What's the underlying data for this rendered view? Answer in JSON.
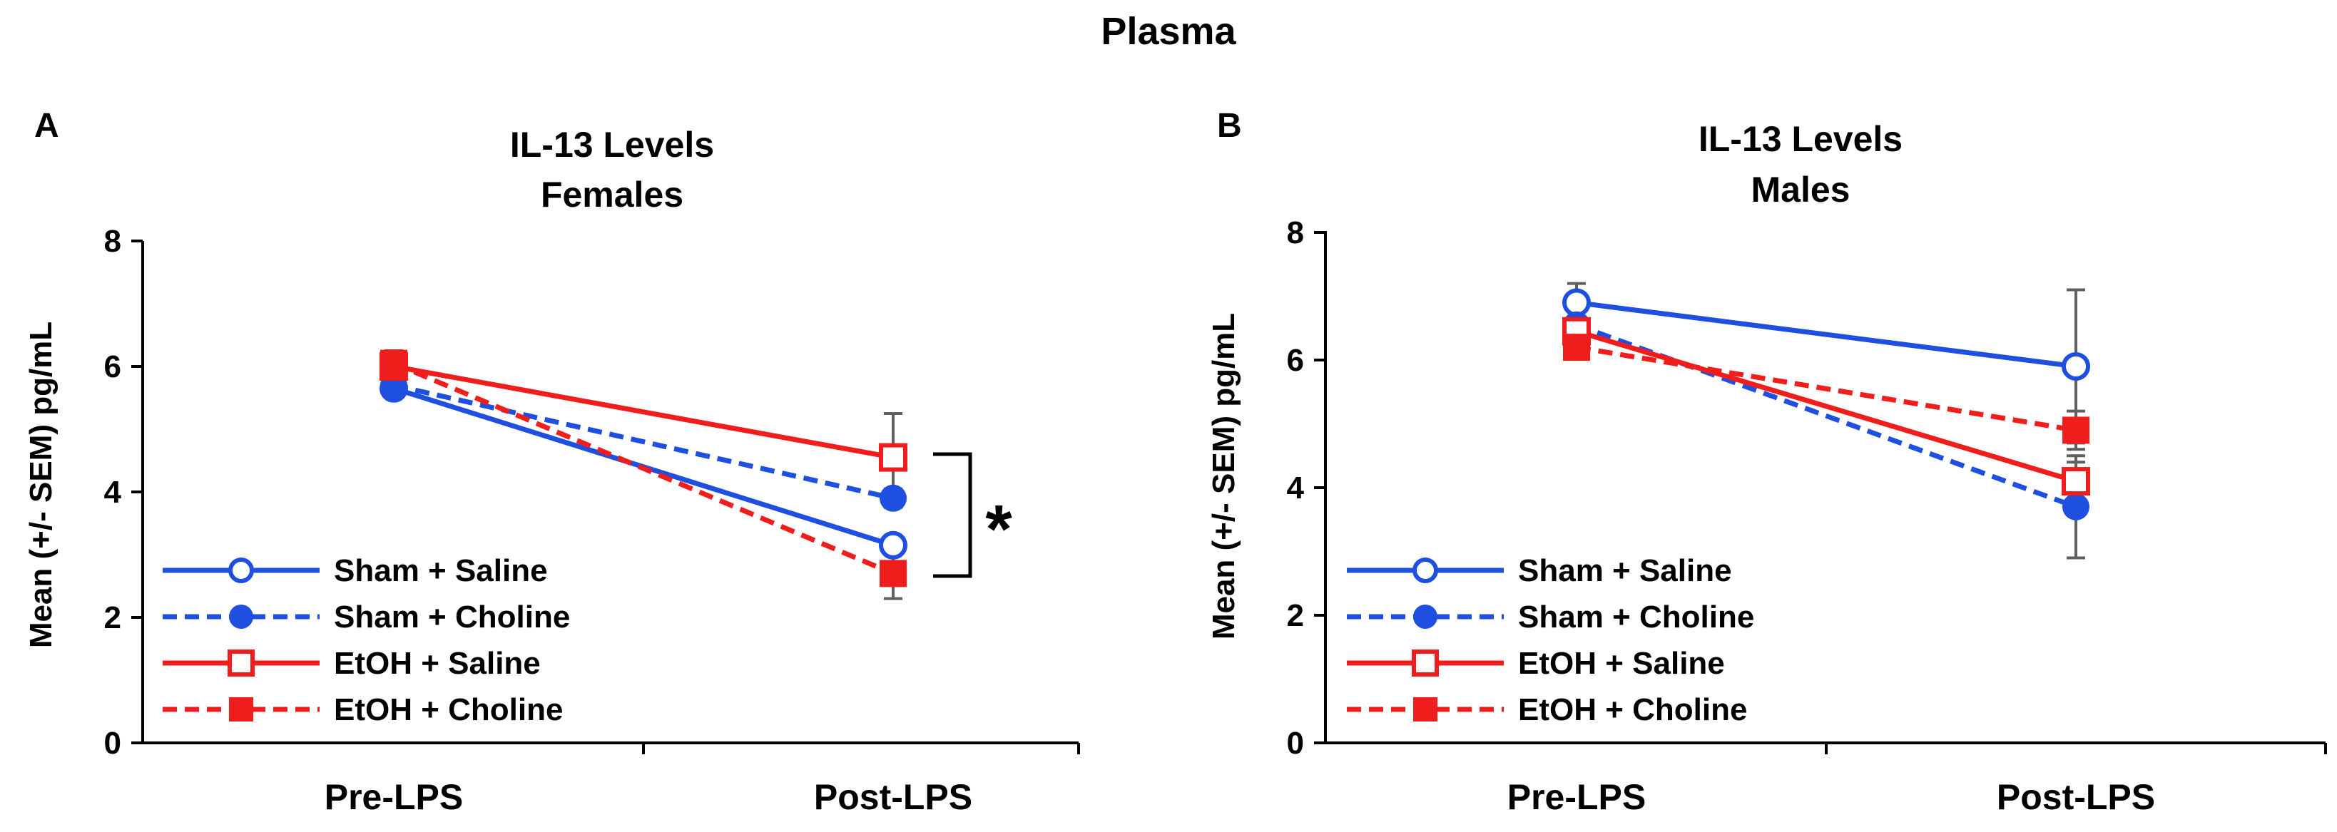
{
  "figure_title": "Plasma",
  "colors": {
    "blue": "#1f4fe0",
    "red": "#f01d1d",
    "error": "#606060",
    "axis": "#000000"
  },
  "chart_data": [
    {
      "panel_label": "A",
      "type": "line",
      "title_line1": "IL-13 Levels",
      "title_line2": "Females",
      "ylabel": "Mean (+/- SEM) pg/mL",
      "xlabel": "",
      "ylim": [
        0,
        8
      ],
      "yticks": [
        "0",
        "2",
        "4",
        "6",
        "8"
      ],
      "categories": [
        "Pre-LPS",
        "Post-LPS"
      ],
      "significance": "*",
      "series": [
        {
          "name": "Sham + Saline",
          "color": "blue",
          "dashed": false,
          "marker": "circle",
          "filled": false,
          "values": [
            5.65,
            3.15
          ],
          "sem": [
            0.15,
            0.15
          ]
        },
        {
          "name": "Sham + Choline",
          "color": "blue",
          "dashed": true,
          "marker": "circle",
          "filled": true,
          "values": [
            5.7,
            3.9
          ],
          "sem": [
            0.15,
            0.15
          ]
        },
        {
          "name": "EtOH + Saline",
          "color": "red",
          "dashed": false,
          "marker": "square",
          "filled": false,
          "values": [
            6.0,
            4.55
          ],
          "sem": [
            0.2,
            0.7
          ]
        },
        {
          "name": "EtOH + Choline",
          "color": "red",
          "dashed": true,
          "marker": "square",
          "filled": true,
          "values": [
            6.05,
            2.7
          ],
          "sem": [
            0.2,
            0.4
          ]
        }
      ]
    },
    {
      "panel_label": "B",
      "type": "line",
      "title_line1": "IL-13 Levels",
      "title_line2": "Males",
      "ylabel": "Mean (+/- SEM) pg/mL",
      "xlabel": "",
      "ylim": [
        0,
        8
      ],
      "yticks": [
        "0",
        "2",
        "4",
        "6",
        "8"
      ],
      "categories": [
        "Pre-LPS",
        "Post-LPS"
      ],
      "significance": "",
      "series": [
        {
          "name": "Sham + Saline",
          "color": "blue",
          "dashed": false,
          "marker": "circle",
          "filled": false,
          "values": [
            6.9,
            5.9
          ],
          "sem": [
            0.3,
            1.2
          ]
        },
        {
          "name": "Sham + Choline",
          "color": "blue",
          "dashed": true,
          "marker": "circle",
          "filled": true,
          "values": [
            6.55,
            3.7
          ],
          "sem": [
            0.2,
            0.8
          ]
        },
        {
          "name": "EtOH + Saline",
          "color": "red",
          "dashed": false,
          "marker": "square",
          "filled": false,
          "values": [
            6.45,
            4.1
          ],
          "sem": [
            0.2,
            0.3
          ]
        },
        {
          "name": "EtOH + Choline",
          "color": "red",
          "dashed": true,
          "marker": "square",
          "filled": true,
          "values": [
            6.2,
            4.9
          ],
          "sem": [
            0.15,
            0.3
          ]
        }
      ]
    }
  ]
}
